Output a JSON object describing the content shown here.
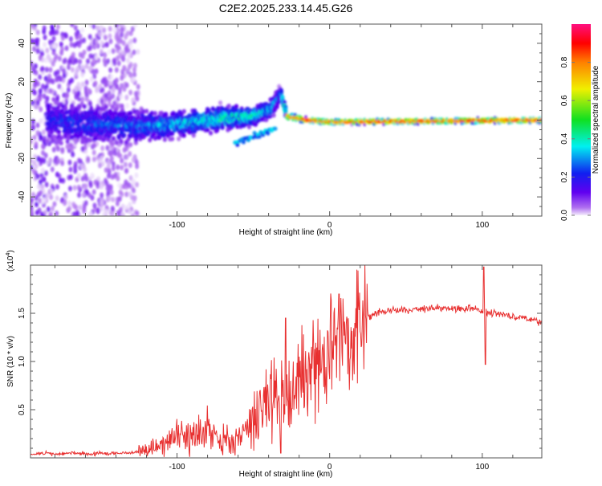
{
  "chart_data": [
    {
      "type": "heatmap",
      "title": "C2E2.2025.233.14.45.G26",
      "xlabel": "Height of straight line (km)",
      "ylabel": "Frequency (Hz)",
      "xlim": [
        -196,
        139
      ],
      "ylim": [
        -50,
        50
      ],
      "xticks": [
        -100,
        0,
        100
      ],
      "yticks": [
        -40,
        -20,
        0,
        20,
        40
      ],
      "colorbar": {
        "label": "Normalized spectral amplitude",
        "range": [
          0,
          1
        ],
        "ticks": [
          "0.0",
          "0.2",
          "0.4",
          "0.6",
          "0.8"
        ]
      },
      "noise_region": {
        "x_from": -196,
        "x_to": -125,
        "amplitude": 0.15
      },
      "ridge": [
        {
          "x": -185,
          "f": 0,
          "spread": 9,
          "amp": 0.22
        },
        {
          "x": -160,
          "f": -2,
          "spread": 8,
          "amp": 0.25
        },
        {
          "x": -130,
          "f": -3,
          "spread": 7,
          "amp": 0.28
        },
        {
          "x": -110,
          "f": -3,
          "spread": 6,
          "amp": 0.33
        },
        {
          "x": -90,
          "f": -1,
          "spread": 5,
          "amp": 0.38
        },
        {
          "x": -70,
          "f": 1,
          "spread": 5,
          "amp": 0.42
        },
        {
          "x": -50,
          "f": 2,
          "spread": 4,
          "amp": 0.42
        },
        {
          "x": -38,
          "f": 6,
          "spread": 4,
          "amp": 0.35
        },
        {
          "x": -32,
          "f": 14,
          "spread": 3,
          "amp": 0.25
        },
        {
          "x": -28,
          "f": 2,
          "spread": 1.5,
          "amp": 0.8
        },
        {
          "x": -15,
          "f": 0,
          "spread": 1,
          "amp": 0.95
        },
        {
          "x": 0,
          "f": -1,
          "spread": 1,
          "amp": 0.92
        },
        {
          "x": 140,
          "f": 0,
          "spread": 1,
          "amp": 0.95
        }
      ],
      "branch": [
        {
          "x": -62,
          "f": -12,
          "amp": 0.3
        },
        {
          "x": -45,
          "f": -7,
          "amp": 0.3
        },
        {
          "x": -35,
          "f": -3,
          "amp": 0.3
        }
      ]
    },
    {
      "type": "line",
      "xlabel": "Height of straight line (km)",
      "ylabel": "SNR (10 * v/v)",
      "y_multiplier": "(x10",
      "y_multiplier_exp": "4",
      "y_multiplier_close": ")",
      "xlim": [
        -196,
        139
      ],
      "ylim": [
        0,
        2
      ],
      "xticks": [
        -100,
        0,
        100
      ],
      "yticks": [
        0.5,
        1.0,
        1.5
      ],
      "ytick_labels": [
        "0.5",
        "1.0",
        "1.5"
      ],
      "color": "#e83030",
      "x_start": -195,
      "x_step": 5,
      "values": [
        0.04,
        0.04,
        0.05,
        0.04,
        0.04,
        0.05,
        0.05,
        0.04,
        0.04,
        0.05,
        0.04,
        0.05,
        0.05,
        0.05,
        0.06,
        0.08,
        0.12,
        0.15,
        0.18,
        0.2,
        0.22,
        0.28,
        0.3,
        0.33,
        0.25,
        0.2,
        0.15,
        0.2,
        0.3,
        0.4,
        0.5,
        0.6,
        0.75,
        0.6,
        0.7,
        0.8,
        0.9,
        0.92,
        1.0,
        1.1,
        1.2,
        1.25,
        1.3,
        1.4,
        1.45,
        1.5,
        1.52,
        1.53,
        1.53,
        1.54,
        1.54,
        1.55,
        1.55,
        1.55,
        1.55,
        1.55,
        1.55,
        1.55,
        1.55,
        1.52,
        1.5,
        1.5,
        1.48,
        1.47,
        1.46,
        1.44,
        1.42
      ],
      "spikes": [
        {
          "x": -29,
          "y": 1.45
        },
        {
          "x": -32,
          "y": 0.05
        },
        {
          "x": 6,
          "y": 1.7
        },
        {
          "x": 101,
          "y": 1.98
        },
        {
          "x": 102,
          "y": 0.97
        }
      ]
    }
  ]
}
